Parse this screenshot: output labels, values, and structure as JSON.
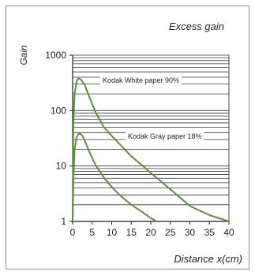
{
  "chart_data": {
    "type": "line",
    "title": "Excess gain",
    "xlabel": "Distance x(cm)",
    "ylabel": "Gain",
    "y_scale": "log",
    "xlim": [
      0,
      40
    ],
    "ylim": [
      1,
      1000
    ],
    "x_ticks": [
      0,
      5,
      10,
      15,
      20,
      25,
      30,
      35,
      40
    ],
    "x_tick_labels": [
      "0",
      "5",
      "10",
      "15",
      "20",
      "25",
      "30",
      "35",
      "40"
    ],
    "y_ticks": [
      1,
      10,
      100,
      1000
    ],
    "y_tick_labels": [
      "1",
      "10",
      "100",
      "1000"
    ],
    "grid": "horizontal minor lines (log scale)",
    "colors": {
      "series": "#5e8f3c",
      "grid": "#333333",
      "axis": "#222222"
    },
    "series": [
      {
        "name": "Kodak White paper 90%",
        "x": [
          0,
          0.2,
          0.5,
          1,
          1.5,
          2,
          3,
          4,
          5,
          6,
          8,
          10,
          12,
          15,
          18,
          20,
          25,
          30,
          35,
          40
        ],
        "y": [
          1,
          60,
          200,
          340,
          380,
          370,
          300,
          200,
          130,
          90,
          50,
          35,
          25,
          15,
          10,
          7.5,
          3.8,
          1.9,
          1.3,
          1
        ]
      },
      {
        "name": "Kodak Gray  paper 18%",
        "x": [
          0,
          0.2,
          0.5,
          1,
          1.5,
          2,
          2.5,
          3,
          4,
          5,
          6,
          8,
          10,
          12,
          15,
          18,
          20,
          21.5
        ],
        "y": [
          1,
          6,
          20,
          33,
          38,
          38,
          35,
          30,
          20,
          14,
          10,
          6.2,
          4.2,
          3,
          2,
          1.45,
          1.15,
          1
        ]
      }
    ]
  }
}
